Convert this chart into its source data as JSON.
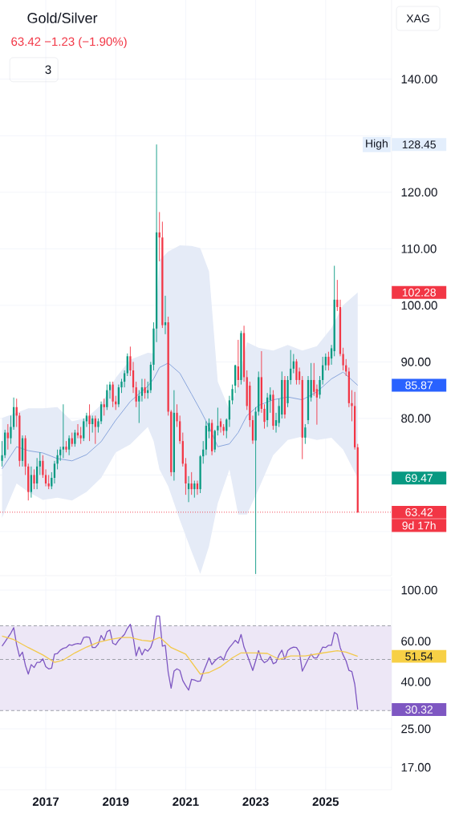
{
  "chart_data": [
    {
      "type": "candlestick",
      "title": "Gold/Silver",
      "subtitle": "63.42 −1.23 (−1.90%)",
      "x": [
        "2015-10",
        "2015-11",
        "2015-12",
        "2016-01",
        "2016-02",
        "2016-03",
        "2016-04",
        "2016-05",
        "2016-06",
        "2016-07",
        "2016-08",
        "2016-09",
        "2016-10",
        "2016-11",
        "2016-12",
        "2017-01",
        "2017-02",
        "2017-03",
        "2017-04",
        "2017-05",
        "2017-06",
        "2017-07",
        "2017-08",
        "2017-09",
        "2017-10",
        "2017-11",
        "2017-12",
        "2018-01",
        "2018-02",
        "2018-03",
        "2018-04",
        "2018-05",
        "2018-06",
        "2018-07",
        "2018-08",
        "2018-09",
        "2018-10",
        "2018-11",
        "2018-12",
        "2019-01",
        "2019-02",
        "2019-03",
        "2019-04",
        "2019-05",
        "2019-06",
        "2019-07",
        "2019-08",
        "2019-09",
        "2019-10",
        "2019-11",
        "2019-12",
        "2020-01",
        "2020-02",
        "2020-03",
        "2020-04",
        "2020-05",
        "2020-06",
        "2020-07",
        "2020-08",
        "2020-09",
        "2020-10",
        "2020-11",
        "2020-12",
        "2021-01",
        "2021-02",
        "2021-03",
        "2021-04",
        "2021-05",
        "2021-06",
        "2021-07",
        "2021-08",
        "2021-09",
        "2021-10",
        "2021-11",
        "2021-12",
        "2022-01",
        "2022-02",
        "2022-03",
        "2022-04",
        "2022-05",
        "2022-06",
        "2022-07",
        "2022-08",
        "2022-09",
        "2022-10",
        "2022-11",
        "2022-12",
        "2023-01",
        "2023-02",
        "2023-03",
        "2023-04",
        "2023-05",
        "2023-06",
        "2023-07",
        "2023-08",
        "2023-09",
        "2023-10",
        "2023-11",
        "2023-12",
        "2024-01",
        "2024-02",
        "2024-03",
        "2024-04",
        "2024-05",
        "2024-06",
        "2024-07",
        "2024-08",
        "2024-09",
        "2024-10",
        "2024-11",
        "2024-12",
        "2025-01",
        "2025-02",
        "2025-03",
        "2025-04",
        "2025-05",
        "2025-06",
        "2025-07",
        "2025-08",
        "2025-09",
        "2025-10",
        "2025-11",
        "2025-12"
      ],
      "ohlc": [
        [
          72.5,
          76,
          71.5,
          73.5
        ],
        [
          73.5,
          78,
          73,
          77.5
        ],
        [
          77.5,
          79,
          74.5,
          76.5
        ],
        [
          76.5,
          80.5,
          75.5,
          78.5
        ],
        [
          78.5,
          83.7,
          78,
          82
        ],
        [
          82,
          83.5,
          78.5,
          80.5
        ],
        [
          80.5,
          81,
          71.5,
          72.5
        ],
        [
          72.5,
          77,
          71.5,
          76.5
        ],
        [
          76.5,
          77,
          70,
          71.5
        ],
        [
          71.5,
          72,
          65.5,
          67
        ],
        [
          67,
          71.5,
          66,
          70
        ],
        [
          70,
          71,
          67.5,
          68.5
        ],
        [
          68.5,
          73,
          67.5,
          71.5
        ],
        [
          71.5,
          74,
          70,
          72.5
        ],
        [
          72.5,
          73.5,
          69.5,
          70
        ],
        [
          70,
          71,
          68,
          68.5
        ],
        [
          68.5,
          70,
          67.5,
          68
        ],
        [
          68,
          70.5,
          67.5,
          69.5
        ],
        [
          69.5,
          72.5,
          68.5,
          72
        ],
        [
          72,
          74.5,
          71,
          73.5
        ],
        [
          73.5,
          75,
          72.5,
          74.5
        ],
        [
          74.5,
          82.5,
          73,
          75
        ],
        [
          75,
          76,
          74,
          74.5
        ],
        [
          74.5,
          77,
          73.5,
          76.5
        ],
        [
          76.5,
          77.5,
          75,
          75.5
        ],
        [
          75.5,
          78,
          75,
          77.5
        ],
        [
          77.5,
          79,
          76.5,
          77
        ],
        [
          77,
          78.5,
          75.5,
          76.5
        ],
        [
          76.5,
          80,
          76,
          79.5
        ],
        [
          79.5,
          81,
          78.5,
          80.5
        ],
        [
          80.5,
          82.5,
          76,
          79
        ],
        [
          79,
          80.5,
          77.5,
          80
        ],
        [
          80,
          80.5,
          75.5,
          78.5
        ],
        [
          78.5,
          80,
          77.5,
          79.5
        ],
        [
          79.5,
          83,
          79,
          82.5
        ],
        [
          82.5,
          83.5,
          80.5,
          82
        ],
        [
          82,
          86,
          81.5,
          85
        ],
        [
          85,
          86.5,
          83.5,
          86
        ],
        [
          86,
          86.5,
          82,
          83
        ],
        [
          83,
          84,
          81.5,
          82.5
        ],
        [
          82.5,
          86,
          82,
          85.5
        ],
        [
          85.5,
          87,
          84.5,
          86.5
        ],
        [
          86.5,
          88.5,
          85.5,
          88
        ],
        [
          88,
          91.5,
          87.5,
          91
        ],
        [
          91,
          92.7,
          87.5,
          88.5
        ],
        [
          88.5,
          90,
          84.5,
          85.5
        ],
        [
          85.5,
          86.5,
          82,
          83
        ],
        [
          83,
          85,
          79.2,
          84
        ],
        [
          84,
          87,
          83,
          85.5
        ],
        [
          85.5,
          87,
          83.5,
          84.5
        ],
        [
          84.5,
          86.5,
          83.5,
          85
        ],
        [
          85,
          90,
          84.5,
          89.5
        ],
        [
          89.5,
          97,
          88.5,
          95.9
        ],
        [
          95.9,
          128.45,
          93.5,
          112.9
        ],
        [
          112.9,
          116.5,
          107.8,
          112
        ],
        [
          112,
          114.8,
          96,
          96.5
        ],
        [
          96.5,
          101.7,
          94.9,
          97
        ],
        [
          97,
          98,
          80.5,
          81.2
        ],
        [
          81.2,
          81.5,
          69.8,
          70.5
        ],
        [
          70.5,
          85,
          69,
          81
        ],
        [
          81,
          82.5,
          78.5,
          79.5
        ],
        [
          79.5,
          80.5,
          75.5,
          76
        ],
        [
          76,
          77.5,
          71.5,
          72
        ],
        [
          72,
          73,
          66.5,
          68.5
        ],
        [
          67.5,
          69.8,
          65.2,
          68.5
        ],
        [
          68.5,
          70.5,
          66.5,
          67.5
        ],
        [
          67.5,
          69,
          66,
          68.5
        ],
        [
          68.5,
          69,
          66.5,
          67.5
        ],
        [
          67.5,
          73.5,
          66.8,
          73.3
        ],
        [
          73.3,
          76,
          72,
          74.5
        ],
        [
          74.5,
          79.5,
          73.5,
          78.7
        ],
        [
          77.7,
          80,
          76.5,
          79.2
        ],
        [
          79.2,
          79.8,
          73.5,
          74.2
        ],
        [
          74.5,
          78,
          74,
          77.8
        ],
        [
          77.9,
          81.9,
          77,
          78.7
        ],
        [
          79.5,
          80,
          77.5,
          78.5
        ],
        [
          78.5,
          79,
          77,
          77.8
        ],
        [
          77.8,
          80,
          76.5,
          79.8
        ],
        [
          79.8,
          84,
          78.5,
          83.2
        ],
        [
          83.2,
          86,
          82.5,
          85.2
        ],
        [
          85.8,
          89.5,
          84.5,
          89.4
        ],
        [
          89.2,
          93.9,
          85.5,
          86.8
        ],
        [
          86.8,
          95.5,
          86,
          95.1
        ],
        [
          95.1,
          96.4,
          86.5,
          87.3
        ],
        [
          87.3,
          88.5,
          81.5,
          82.2
        ],
        [
          85.8,
          86.5,
          78.5,
          79.7
        ],
        [
          79.7,
          80.5,
          75.5,
          76.1
        ],
        [
          76.1,
          82,
          52.5,
          81.2
        ],
        [
          81.2,
          88.3,
          80.5,
          87.3
        ],
        [
          87.3,
          91.9,
          81,
          81.7
        ],
        [
          81.7,
          82.5,
          78.2,
          79.4
        ],
        [
          79.7,
          84.5,
          78.5,
          83.7
        ],
        [
          83.2,
          85.5,
          81,
          84.2
        ],
        [
          84.2,
          85,
          78,
          78.7
        ],
        [
          78.7,
          81,
          77.5,
          79.7
        ],
        [
          79.2,
          83.5,
          78.5,
          82.2
        ],
        [
          80.7,
          88.3,
          80,
          86.8
        ],
        [
          86.8,
          87.5,
          80,
          80.7
        ],
        [
          82.7,
          87.5,
          82,
          86.8
        ],
        [
          86.8,
          92.1,
          86,
          88.8
        ],
        [
          88.8,
          91.4,
          88,
          90.1
        ],
        [
          90.1,
          90.5,
          86,
          86.8
        ],
        [
          88.3,
          89,
          86,
          86.8
        ],
        [
          86.8,
          87.5,
          72.8,
          76.6
        ],
        [
          76.6,
          79,
          75.5,
          78.4
        ],
        [
          79.7,
          87.5,
          79,
          86.8
        ],
        [
          83.7,
          89.8,
          83,
          86.8
        ],
        [
          86.8,
          89.8,
          84,
          84.7
        ],
        [
          85.2,
          86,
          78.9,
          83.7
        ],
        [
          84.2,
          87.5,
          83.5,
          86.8
        ],
        [
          86.8,
          90.9,
          86,
          89.4
        ],
        [
          89.4,
          91.5,
          88.5,
          90.9
        ],
        [
          90.9,
          91.8,
          88.5,
          89.4
        ],
        [
          90.6,
          93,
          89.5,
          92.4
        ],
        [
          91.9,
          107,
          91,
          101
        ],
        [
          101,
          104.5,
          99,
          99.7
        ],
        [
          99.7,
          101,
          91,
          91.4
        ],
        [
          91.4,
          92.5,
          88.5,
          89.4
        ],
        [
          89.4,
          90.5,
          87.5,
          88.3
        ],
        [
          88.3,
          89,
          82,
          82.7
        ],
        [
          82.7,
          85,
          79.5,
          82.2
        ],
        [
          82.2,
          84.7,
          74.5,
          74.9
        ],
        [
          74.9,
          75.5,
          63.3,
          63.42
        ]
      ],
      "colors": [
        "#089981",
        "#089981",
        "#f23645",
        "#089981",
        "#089981",
        "#f23645",
        "#f23645",
        "#089981",
        "#f23645",
        "#f23645",
        "#089981",
        "#f23645",
        "#089981",
        "#089981",
        "#f23645",
        "#f23645",
        "#f23645",
        "#089981",
        "#089981",
        "#089981",
        "#089981",
        "#089981",
        "#f23645",
        "#089981",
        "#f23645",
        "#089981",
        "#f23645",
        "#f23645",
        "#089981",
        "#089981",
        "#f23645",
        "#089981",
        "#f23645",
        "#089981",
        "#089981",
        "#f23645",
        "#089981",
        "#089981",
        "#f23645",
        "#f23645",
        "#089981",
        "#089981",
        "#089981",
        "#089981",
        "#f23645",
        "#f23645",
        "#f23645",
        "#089981",
        "#089981",
        "#f23645",
        "#089981",
        "#089981",
        "#089981",
        "#089981",
        "#f23645",
        "#f23645",
        "#089981",
        "#f23645",
        "#f23645",
        "#089981",
        "#f23645",
        "#f23645",
        "#f23645",
        "#f23645",
        "#089981",
        "#f23645",
        "#089981",
        "#f23645",
        "#089981",
        "#089981",
        "#089981",
        "#089981",
        "#f23645",
        "#089981",
        "#089981",
        "#f23645",
        "#f23645",
        "#089981",
        "#089981",
        "#089981",
        "#089981",
        "#f23645",
        "#089981",
        "#f23645",
        "#f23645",
        "#f23645",
        "#f23645",
        "#089981",
        "#089981",
        "#f23645",
        "#f23645",
        "#089981",
        "#089981",
        "#f23645",
        "#089981",
        "#089981",
        "#089981",
        "#f23645",
        "#089981",
        "#089981",
        "#089981",
        "#f23645",
        "#f23645",
        "#f23645",
        "#089981",
        "#089981",
        "#089981",
        "#f23645",
        "#f23645",
        "#089981",
        "#089981",
        "#089981",
        "#f23645",
        "#089981",
        "#089981",
        "#f23645",
        "#f23645",
        "#f23645",
        "#f23645",
        "#f23645",
        "#f23645",
        "#f23645",
        "#f23645"
      ],
      "series": [
        {
          "type": "line",
          "color": "#8aa6dc",
          "x": [
            "2015-10",
            "2016-03",
            "2016-07",
            "2016-12",
            "2017-05",
            "2017-10",
            "2018-03",
            "2018-08",
            "2019-01",
            "2019-06",
            "2019-12",
            "2020-02",
            "2020-04",
            "2020-07",
            "2020-11",
            "2021-03",
            "2021-06",
            "2021-09",
            "2021-12",
            "2022-04",
            "2022-07",
            "2022-10",
            "2023-02",
            "2023-07",
            "2023-12",
            "2024-05",
            "2024-10",
            "2025-03",
            "2025-07",
            "2025-12"
          ],
          "values": [
            71.1,
            75.0,
            74.3,
            73.9,
            72.9,
            72.5,
            73.6,
            75.9,
            79.7,
            83.0,
            85.7,
            87.0,
            89.0,
            89.8,
            88.0,
            84.3,
            81.5,
            78.5,
            75.0,
            75.5,
            77.5,
            80.5,
            82.3,
            83.3,
            83.8,
            83.3,
            84.7,
            87.0,
            88.2,
            85.87
          ],
          "lower": [
            62.4,
            68.5,
            67.0,
            65.6,
            66.0,
            65.5,
            67.0,
            69.5,
            74.0,
            75.4,
            78.5,
            76.0,
            71.0,
            68.0,
            62,
            56.5,
            52.5,
            57.4,
            65.0,
            71.0,
            63,
            63,
            67.5,
            73.5,
            76.2,
            76.8,
            76.2,
            76.6,
            74.5,
            69.47
          ],
          "upper": [
            80.1,
            81.0,
            81.8,
            81.8,
            82.0,
            79.5,
            80.1,
            82.4,
            87.2,
            90.4,
            91.6,
            91.5,
            108,
            109.5,
            110.6,
            110.5,
            110.1,
            106,
            86.5,
            81.5,
            86,
            93.5,
            92.5,
            92.0,
            93.0,
            92.0,
            92.8,
            96,
            100,
            102.28
          ]
        }
      ],
      "xlim": [
        "2015-09-10",
        "2026-11-20"
      ],
      "xticks": [
        "2017",
        "2019",
        "2021",
        "2023",
        "2025"
      ],
      "ylim": [
        52.2,
        154
      ],
      "yticks": [
        {
          "value": 60,
          "label": null
        },
        {
          "value": 70,
          "label": null
        },
        {
          "value": 80,
          "label": "80.00"
        },
        {
          "value": 90,
          "label": "90.00"
        },
        {
          "value": 100,
          "label": "100.00"
        },
        {
          "value": 110,
          "label": "110.00"
        },
        {
          "value": 120,
          "label": "120.00"
        },
        {
          "value": 130,
          "label": null
        },
        {
          "value": 140,
          "label": "140.00"
        }
      ],
      "tick_labels": "y",
      "grid": true,
      "ref_lines": [
        {
          "axis": "y",
          "value": 63.42,
          "label": "63.42",
          "color": "#f23645",
          "line_style": "dotted"
        }
      ],
      "annotations": [
        "3",
        "XAG",
        "9d 17h",
        "High",
        "128.45",
        "102.28",
        "85.87",
        "69.47"
      ]
    },
    {
      "type": "line",
      "x": [
        "2015-10",
        "2015-11",
        "2015-12",
        "2016-01",
        "2016-02",
        "2016-03",
        "2016-04",
        "2016-05",
        "2016-06",
        "2016-07",
        "2016-08",
        "2016-09",
        "2016-10",
        "2016-11",
        "2016-12",
        "2017-01",
        "2017-02",
        "2017-03",
        "2017-04",
        "2017-05",
        "2017-06",
        "2017-07",
        "2017-08",
        "2017-09",
        "2017-10",
        "2017-11",
        "2017-12",
        "2018-01",
        "2018-02",
        "2018-03",
        "2018-04",
        "2018-05",
        "2018-06",
        "2018-07",
        "2018-08",
        "2018-09",
        "2018-10",
        "2018-11",
        "2018-12",
        "2019-01",
        "2019-02",
        "2019-03",
        "2019-04",
        "2019-05",
        "2019-06",
        "2019-07",
        "2019-08",
        "2019-09",
        "2019-10",
        "2019-11",
        "2019-12",
        "2020-01",
        "2020-02",
        "2020-03",
        "2020-04",
        "2020-05",
        "2020-06",
        "2020-07",
        "2020-08",
        "2020-09",
        "2020-10",
        "2020-11",
        "2020-12",
        "2021-01",
        "2021-02",
        "2021-03",
        "2021-04",
        "2021-05",
        "2021-06",
        "2021-07",
        "2021-08",
        "2021-09",
        "2021-10",
        "2021-11",
        "2021-12",
        "2022-01",
        "2022-02",
        "2022-03",
        "2022-04",
        "2022-05",
        "2022-06",
        "2022-07",
        "2022-08",
        "2022-09",
        "2022-10",
        "2022-11",
        "2022-12",
        "2023-01",
        "2023-02",
        "2023-03",
        "2023-04",
        "2023-05",
        "2023-06",
        "2023-07",
        "2023-08",
        "2023-09",
        "2023-10",
        "2023-11",
        "2023-12",
        "2024-01",
        "2024-02",
        "2024-03",
        "2024-04",
        "2024-05",
        "2024-06",
        "2024-07",
        "2024-08",
        "2024-09",
        "2024-10",
        "2024-11",
        "2024-12",
        "2025-01",
        "2025-02",
        "2025-03",
        "2025-04",
        "2025-05",
        "2025-06",
        "2025-07",
        "2025-08",
        "2025-09",
        "2025-10",
        "2025-11",
        "2025-12"
      ],
      "series": [
        {
          "color": "#7e57c2",
          "values": [
            57.1,
            59.6,
            62.3,
            65,
            68.7,
            57.9,
            51.5,
            53.8,
            47.2,
            43.2,
            47.5,
            46.1,
            48.6,
            48.6,
            50.3,
            46.5,
            45.5,
            45.8,
            52.7,
            53.1,
            54.9,
            55.9,
            56.3,
            57.9,
            57.6,
            58.3,
            58.6,
            58.3,
            62.3,
            62.6,
            62.3,
            56.3,
            56.3,
            58.3,
            63.6,
            60.5,
            66,
            67.1,
            58.8,
            57.9,
            60.5,
            62.3,
            64.2,
            68.2,
            71.1,
            62.3,
            51.8,
            56.6,
            52.3,
            55.4,
            54.3,
            56.3,
            61.4,
            77.2,
            77.2,
            57.1,
            57.6,
            43.9,
            37.5,
            44.5,
            45.5,
            44.8,
            40.5,
            38.5,
            36.8,
            41.0,
            40.7,
            40.2,
            40.3,
            43.9,
            47.2,
            50.8,
            47.5,
            49.3,
            50.6,
            51.5,
            49.7,
            53.8,
            56.3,
            58.3,
            60.5,
            58.8,
            64.2,
            56.6,
            52.7,
            48.6,
            44.8,
            49.3,
            54.6,
            50.1,
            48.4,
            49.3,
            51.5,
            47.9,
            48.6,
            52.3,
            54.9,
            50.1,
            54.6,
            55.9,
            56.6,
            56.3,
            53.8,
            44.5,
            47.2,
            50.1,
            52.7,
            50.8,
            50.8,
            53.4,
            56.6,
            56.3,
            57.6,
            57.6,
            65.5,
            64.2,
            56.3,
            52.3,
            49.3,
            44.8,
            44.3,
            39.0,
            30.32
          ]
        },
        {
          "color": "#f2c94c",
          "x": [
            "2015-10",
            "2016-02",
            "2016-07",
            "2016-12",
            "2017-04",
            "2017-07",
            "2017-11",
            "2018-03",
            "2018-07",
            "2018-11",
            "2019-03",
            "2019-06",
            "2019-10",
            "2020-01",
            "2020-04",
            "2020-05",
            "2020-08",
            "2021-01",
            "2021-06",
            "2021-09",
            "2022-01",
            "2022-05",
            "2022-08",
            "2023-01",
            "2023-05",
            "2023-09",
            "2024-01",
            "2024-06",
            "2024-11",
            "2025-05",
            "2025-08",
            "2025-12"
          ],
          "values": [
            63.2,
            61.0,
            56.3,
            52.3,
            48.6,
            49.7,
            53.4,
            56.6,
            59.3,
            61.0,
            62.3,
            62.3,
            60.5,
            60.0,
            62.3,
            61.0,
            56.3,
            52.7,
            43.2,
            43.9,
            46.5,
            50.8,
            53.4,
            53.4,
            53.1,
            50.1,
            51.8,
            51.8,
            53.1,
            54.6,
            53.8,
            51.54
          ]
        }
      ],
      "xlim": [
        "2015-09-10",
        "2026-11-20"
      ],
      "xticks": [
        "2017",
        "2019",
        "2021",
        "2023",
        "2025"
      ],
      "log": "y",
      "ylim": [
        13.6,
        113.7
      ],
      "yticks": [
        {
          "value": 17,
          "label": "17.00"
        },
        {
          "value": 25,
          "label": "25.00"
        },
        {
          "value": 40,
          "label": "40.00"
        },
        {
          "value": 60,
          "label": "60.00"
        },
        {
          "value": 100,
          "label": "100.00"
        }
      ],
      "grid": true,
      "bands": [
        {
          "axis": "y",
          "from": 30,
          "to": 70,
          "color": "#ede7f6"
        }
      ],
      "ref_lines": [
        {
          "axis": "y",
          "value": 70,
          "color": "#9598a1",
          "line_style": "dashed"
        },
        {
          "axis": "y",
          "value": 50,
          "color": "#9598a1",
          "line_style": "dashed"
        },
        {
          "axis": "y",
          "value": 30,
          "color": "#9598a1",
          "line_style": "dashed"
        }
      ],
      "annotations": [
        "51.54",
        "30.32"
      ]
    }
  ]
}
